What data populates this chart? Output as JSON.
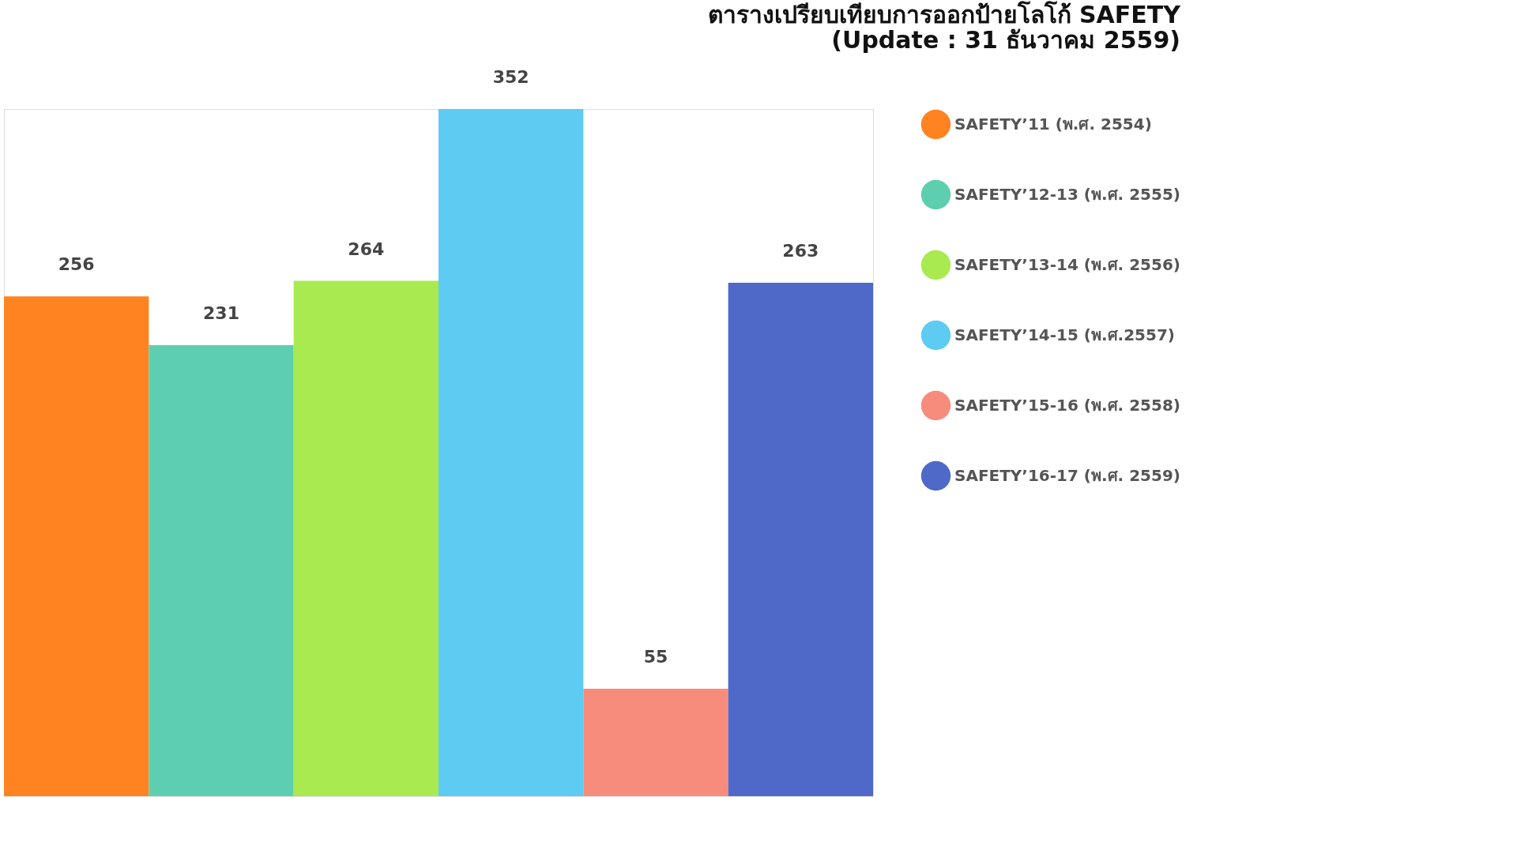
{
  "chart_data": {
    "type": "bar",
    "title": [
      "ตารางเปรียบเทียบการออกป้ายโลโก้ SAFETY",
      "(Update : 31 ธันวาคม 2559)"
    ],
    "categories": [
      null
    ],
    "series": [
      {
        "name": "SAFETY’11 (พ.ศ. 2554)",
        "color": "#ff8321",
        "values": [
          256
        ]
      },
      {
        "name": "SAFETY’12-13 (พ.ศ. 2555)",
        "color": "#5dcfb0",
        "values": [
          231
        ]
      },
      {
        "name": "SAFETY’13-14 (พ.ศ. 2556)",
        "color": "#a8ea50",
        "values": [
          264
        ]
      },
      {
        "name": "SAFETY’14-15 (พ.ศ.2557)",
        "color": "#5ecbf2",
        "values": [
          352
        ]
      },
      {
        "name": "SAFETY’15-16 (พ.ศ. 2558)",
        "color": "#f78c7c",
        "values": [
          55
        ]
      },
      {
        "name": "SAFETY’16-17 (พ.ศ. 2559)",
        "color": "#4f69c8",
        "values": [
          263
        ]
      }
    ],
    "data_labels": true,
    "legend": "right"
  }
}
